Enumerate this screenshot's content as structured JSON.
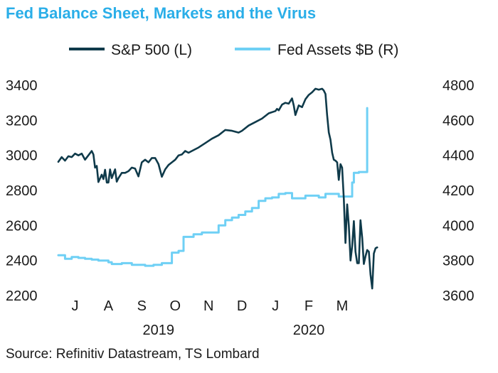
{
  "title": "Fed Balance Sheet, Markets and the Virus",
  "source": "Source: Refinitiv Datastream, TS Lombard",
  "chart_data": {
    "type": "line",
    "title": "Fed Balance Sheet, Markets and the Virus",
    "colors": {
      "title": "#2aaee8",
      "sp500": "#0f3a4a",
      "fed": "#6fd0f5"
    },
    "legend": [
      {
        "name": "S&P 500 (L)",
        "color": "#0f3a4a"
      },
      {
        "name": "Fed Assets $B (R)",
        "color": "#6fd0f5"
      }
    ],
    "legend_position": "top",
    "x_range": [
      0,
      11.25
    ],
    "x_ticks": [
      {
        "label": "J",
        "x": 0.5
      },
      {
        "label": "A",
        "x": 1.5
      },
      {
        "label": "S",
        "x": 2.5
      },
      {
        "label": "O",
        "x": 3.5
      },
      {
        "label": "N",
        "x": 4.5
      },
      {
        "label": "D",
        "x": 5.5
      },
      {
        "label": "J",
        "x": 6.5
      },
      {
        "label": "F",
        "x": 7.5
      },
      {
        "label": "M",
        "x": 8.5
      }
    ],
    "year_labels": [
      {
        "label": "2019",
        "x": 3.0
      },
      {
        "label": "2020",
        "x": 7.5
      }
    ],
    "y_left": {
      "label": "S&P 500",
      "ylim": [
        2200,
        3400
      ],
      "ticks": [
        2200,
        2400,
        2600,
        2800,
        3000,
        3200,
        3400
      ]
    },
    "y_right": {
      "label": "Fed Assets $B",
      "ylim": [
        3600,
        4800
      ],
      "ticks": [
        3600,
        3800,
        4000,
        4200,
        4400,
        4600,
        4800
      ]
    },
    "series": [
      {
        "name": "S&P 500 (L)",
        "axis": "left",
        "step": false,
        "x": [
          0,
          0.1,
          0.2,
          0.3,
          0.4,
          0.5,
          0.6,
          0.7,
          0.8,
          0.9,
          1.0,
          1.05,
          1.1,
          1.15,
          1.2,
          1.3,
          1.35,
          1.4,
          1.45,
          1.5,
          1.55,
          1.6,
          1.7,
          1.75,
          1.8,
          1.9,
          2.0,
          2.1,
          2.2,
          2.3,
          2.4,
          2.5,
          2.6,
          2.7,
          2.8,
          2.9,
          3.0,
          3.1,
          3.2,
          3.3,
          3.4,
          3.5,
          3.6,
          3.7,
          3.8,
          3.9,
          4.0,
          4.2,
          4.4,
          4.6,
          4.8,
          5.0,
          5.2,
          5.4,
          5.5,
          5.7,
          5.9,
          6.1,
          6.3,
          6.5,
          6.55,
          6.6,
          6.7,
          6.8,
          6.9,
          7.0,
          7.05,
          7.1,
          7.2,
          7.3,
          7.4,
          7.5,
          7.6,
          7.7,
          7.8,
          7.9,
          7.95,
          8.0,
          8.05,
          8.1,
          8.15,
          8.2,
          8.25,
          8.3,
          8.35,
          8.4,
          8.45,
          8.5,
          8.55,
          8.6,
          8.65,
          8.7,
          8.75,
          8.8,
          8.85,
          8.9,
          8.95,
          9.0,
          9.05,
          9.1,
          9.15,
          9.2,
          9.25,
          9.3,
          9.35,
          9.4,
          9.45,
          9.5,
          9.55
        ],
        "values": [
          2963,
          2990,
          2970,
          2995,
          2990,
          3010,
          3000,
          3010,
          2975,
          3000,
          3025,
          3005,
          2930,
          2940,
          2848,
          2890,
          2865,
          2918,
          2845,
          2845,
          2920,
          2870,
          2920,
          2850,
          2870,
          2900,
          2900,
          2910,
          2930,
          2925,
          2880,
          2960,
          2975,
          2960,
          2985,
          2985,
          2950,
          2878,
          2920,
          2945,
          2960,
          2975,
          3000,
          3005,
          3025,
          3015,
          3025,
          3045,
          3070,
          3095,
          3115,
          3145,
          3140,
          3130,
          3140,
          3170,
          3190,
          3210,
          3240,
          3253,
          3265,
          3257,
          3290,
          3300,
          3295,
          3325,
          3285,
          3230,
          3285,
          3275,
          3320,
          3345,
          3360,
          3380,
          3375,
          3380,
          3370,
          3350,
          3230,
          3130,
          3090,
          3015,
          2975,
          2970,
          2960,
          2860,
          2950,
          2930,
          2750,
          2500,
          2720,
          2600,
          2400,
          2480,
          2625,
          2450,
          2385,
          2385,
          2630,
          2530,
          2380,
          2425,
          2460,
          2450,
          2320,
          2240,
          2440,
          2470,
          2475
        ]
      },
      {
        "name": "Fed Assets $B (R)",
        "axis": "right",
        "step": true,
        "x": [
          0,
          0.2,
          0.4,
          0.6,
          0.8,
          1.0,
          1.2,
          1.5,
          1.6,
          1.75,
          1.9,
          2.2,
          2.5,
          2.6,
          2.85,
          3.1,
          3.4,
          3.6,
          3.75,
          4.05,
          4.3,
          4.6,
          4.8,
          5.0,
          5.2,
          5.4,
          5.6,
          5.8,
          6.0,
          6.2,
          6.4,
          6.6,
          6.8,
          7.0,
          7.2,
          7.4,
          7.6,
          7.8,
          8.0,
          8.2,
          8.4,
          8.6,
          8.8,
          8.85,
          9.0,
          9.2,
          9.25
        ],
        "values": [
          3830,
          3810,
          3820,
          3815,
          3810,
          3805,
          3800,
          3790,
          3780,
          3780,
          3785,
          3775,
          3775,
          3770,
          3775,
          3785,
          3845,
          3855,
          3935,
          3950,
          3960,
          3960,
          4000,
          4030,
          4045,
          4060,
          4080,
          4100,
          4140,
          4155,
          4160,
          4180,
          4185,
          4155,
          4155,
          4170,
          4170,
          4160,
          4180,
          4180,
          4165,
          4165,
          4245,
          4300,
          4305,
          4305,
          4670
        ]
      }
    ]
  }
}
